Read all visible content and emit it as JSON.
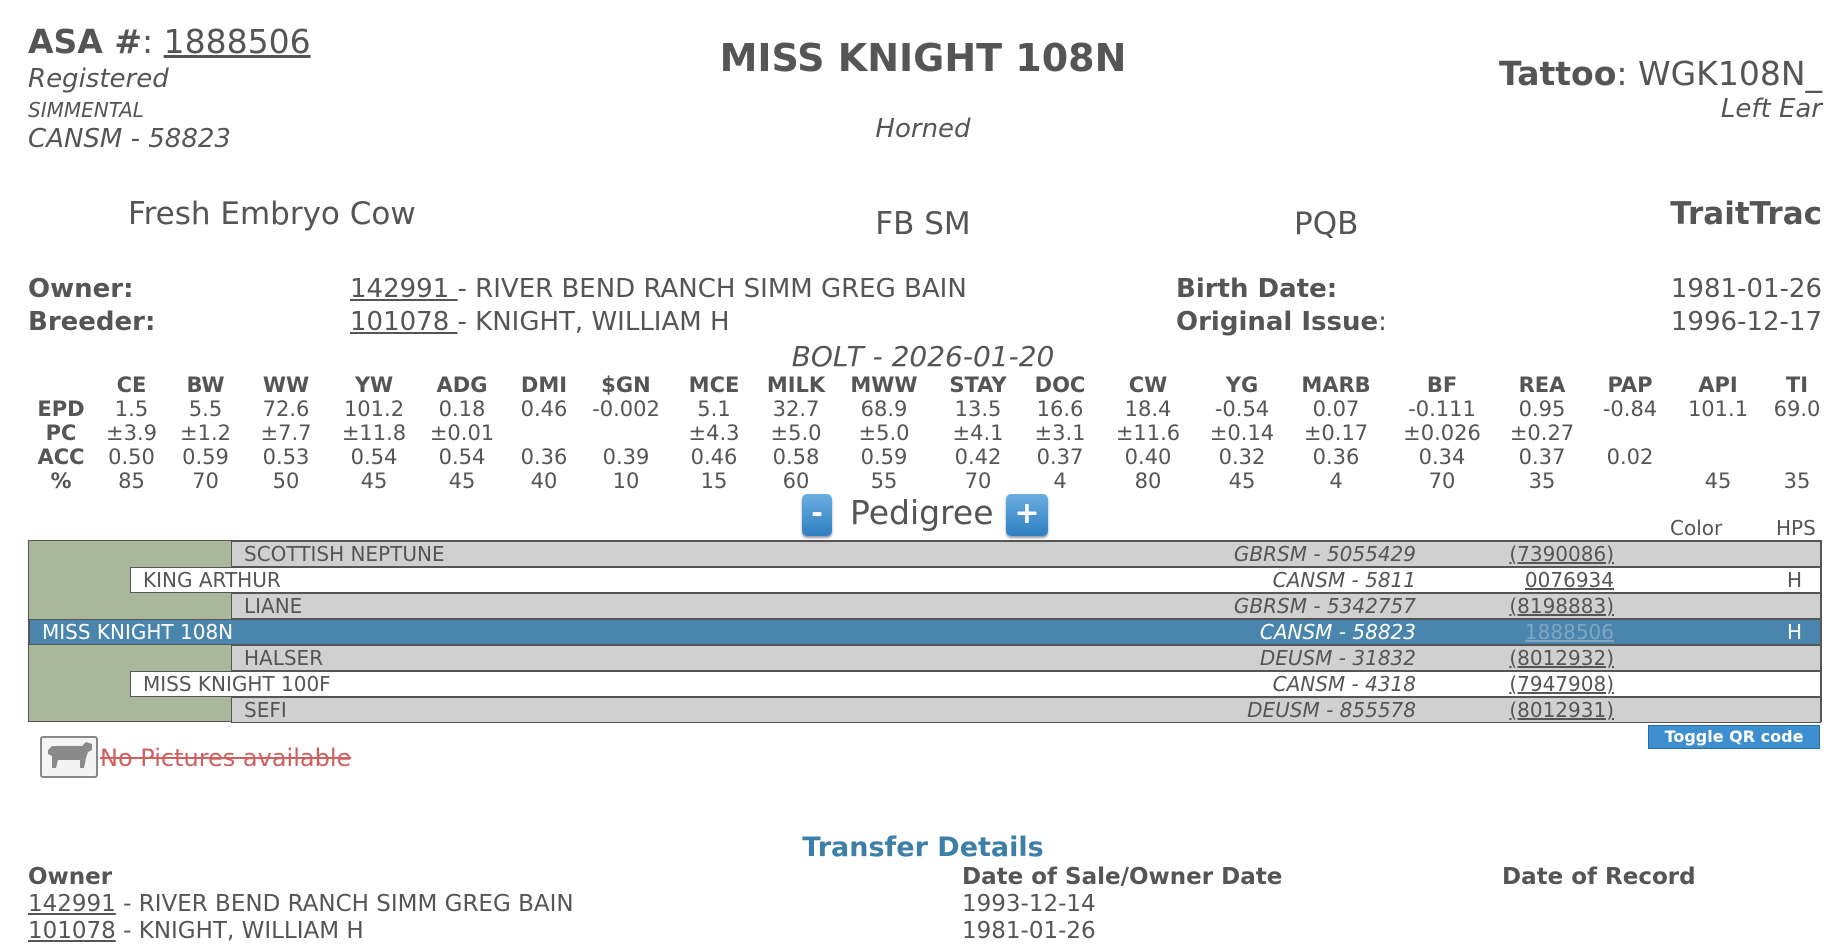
{
  "header": {
    "asa_label": "ASA #",
    "asa_number": "1888506",
    "registered": "Registered",
    "breed": "SIMMENTAL",
    "herdbook": "CANSM - 58823",
    "name": "MISS KNIGHT 108N",
    "horned": "Horned",
    "tattoo_label": "Tattoo",
    "tattoo_value": "WGK108N_",
    "ear": "Left Ear"
  },
  "classification": {
    "status": "Fresh Embryo Cow",
    "breed_code": "FB SM",
    "pqb": "PQB",
    "traittrac": "TraitTrac"
  },
  "info": {
    "owner_label": "Owner:",
    "owner_id": "142991 ",
    "owner_name": " - RIVER BEND RANCH SIMM GREG BAIN",
    "breeder_label": "Breeder:",
    "breeder_id": "101078 ",
    "breeder_name": " - KNIGHT, WILLIAM H",
    "birth_label": "Birth Date:",
    "birth_value": "1981-01-26",
    "issue_label": "Original Issue",
    "issue_value": "1996-12-17"
  },
  "bolt": "BOLT - 2026-01-20",
  "epd": {
    "columns": [
      "CE",
      "BW",
      "WW",
      "YW",
      "ADG",
      "DMI",
      "$GN",
      "MCE",
      "MILK",
      "MWW",
      "STAY",
      "DOC",
      "CW",
      "YG",
      "MARB",
      "BF",
      "REA",
      "PAP",
      "API",
      "TI"
    ],
    "rows": [
      {
        "label": "EPD",
        "values": [
          "1.5",
          "5.5",
          "72.6",
          "101.2",
          "0.18",
          "0.46",
          "-0.002",
          "5.1",
          "32.7",
          "68.9",
          "13.5",
          "16.6",
          "18.4",
          "-0.54",
          "0.07",
          "-0.111",
          "0.95",
          "-0.84",
          "101.1",
          "69.0"
        ]
      },
      {
        "label": "PC",
        "values": [
          "±3.9",
          "±1.2",
          "±7.7",
          "±11.8",
          "±0.01",
          "",
          "",
          "±4.3",
          "±5.0",
          "±5.0",
          "±4.1",
          "±3.1",
          "±11.6",
          "±0.14",
          "±0.17",
          "±0.026",
          "±0.27",
          "",
          "",
          ""
        ]
      },
      {
        "label": "ACC",
        "values": [
          "0.50",
          "0.59",
          "0.53",
          "0.54",
          "0.54",
          "0.36",
          "0.39",
          "0.46",
          "0.58",
          "0.59",
          "0.42",
          "0.37",
          "0.40",
          "0.32",
          "0.36",
          "0.34",
          "0.37",
          "0.02",
          "",
          ""
        ]
      },
      {
        "label": "%",
        "values": [
          "85",
          "70",
          "50",
          "45",
          "45",
          "40",
          "10",
          "15",
          "60",
          "55",
          "70",
          "4",
          "80",
          "45",
          "4",
          "70",
          "35",
          "",
          "45",
          "35"
        ]
      }
    ]
  },
  "pedigree": {
    "minus": "-",
    "title": "Pedigree",
    "plus": "+",
    "color_label": "Color",
    "hps_label": "HPS",
    "rows": [
      {
        "name": "SCOTTISH NEPTUNE",
        "herdbook": "GBRSM - 5055429",
        "reg": "(7390086)",
        "hps": ""
      },
      {
        "name": "KING ARTHUR",
        "herdbook": "CANSM - 5811",
        "reg": "0076934",
        "hps": "H"
      },
      {
        "name": "LIANE",
        "herdbook": "GBRSM - 5342757",
        "reg": "(8198883)",
        "hps": ""
      },
      {
        "name": "MISS KNIGHT 108N",
        "herdbook": "CANSM - 58823",
        "reg": "1888506",
        "hps": "H"
      },
      {
        "name": "HALSER",
        "herdbook": "DEUSM - 31832",
        "reg": "(8012932)",
        "hps": ""
      },
      {
        "name": "MISS KNIGHT 100F",
        "herdbook": "CANSM - 4318",
        "reg": "(7947908)",
        "hps": ""
      },
      {
        "name": "SEFI",
        "herdbook": "DEUSM - 855578",
        "reg": "(8012931)",
        "hps": ""
      }
    ]
  },
  "toggle_qr": "Toggle QR code",
  "no_pictures": "No Pictures available",
  "transfer": {
    "title": "Transfer Details",
    "col_owner": "Owner",
    "col_date": "Date of Sale/Owner Date",
    "col_record": "Date of Record",
    "rows": [
      {
        "id": "142991",
        "name": " - RIVER BEND RANCH SIMM GREG BAIN",
        "date": "1993-12-14"
      },
      {
        "id": "101078",
        "name": " - KNIGHT, WILLIAM H",
        "date": "1981-01-26"
      }
    ]
  }
}
